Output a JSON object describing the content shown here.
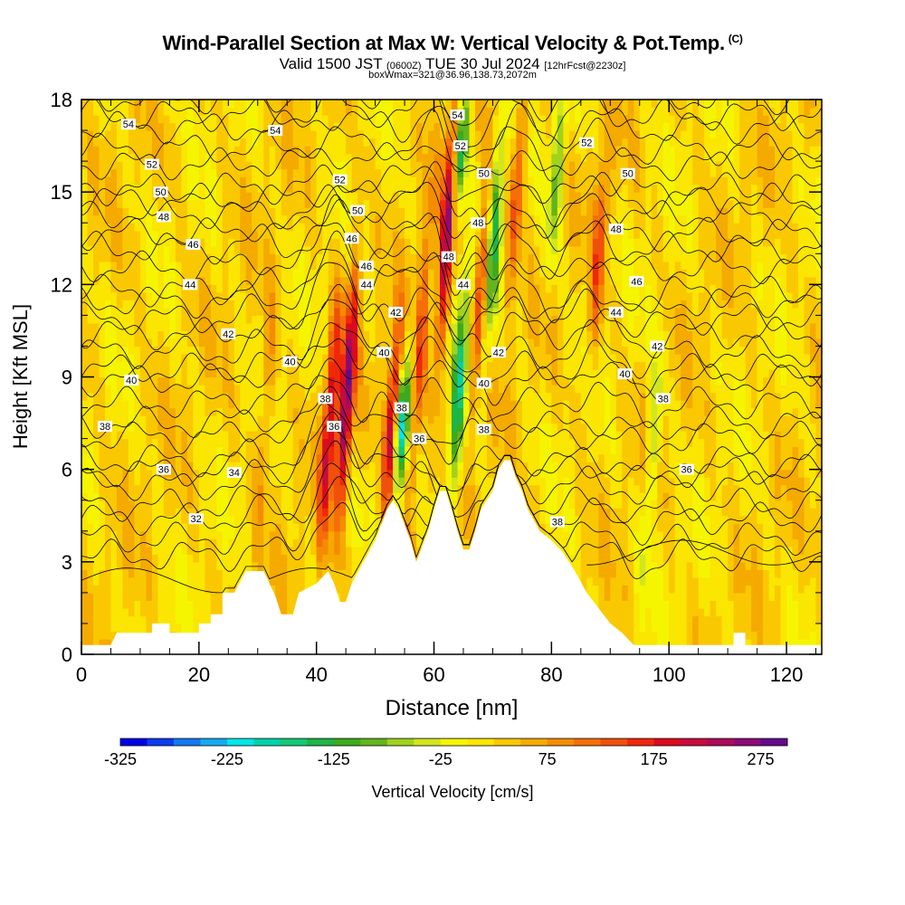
{
  "header": {
    "title": "Wind-Parallel Section at Max W: Vertical Velocity & Pot.Temp.",
    "copyright": "(C)",
    "valid_prefix": "Valid 1500 JST",
    "valid_z": "(0600Z)",
    "valid_date": "TUE 30 Jul 2024",
    "forecast": "[12hrFcst@2230z]",
    "boxwmax": "boxWmax=321@36.96,138.73,2072m"
  },
  "chart_data": {
    "type": "heatmap",
    "title": "Wind-Parallel Section at Max W: Vertical Velocity & Pot.Temp.",
    "xlabel": "Distance [nm]",
    "ylabel": "Height [Kft MSL]",
    "xlim": [
      0,
      126
    ],
    "ylim": [
      0,
      18
    ],
    "x_ticks": [
      0,
      20,
      40,
      60,
      80,
      100,
      120
    ],
    "y_ticks": [
      0,
      3,
      6,
      9,
      12,
      15,
      18
    ],
    "colorbar": {
      "label": "Vertical Velocity [cm/s]",
      "range": [
        -325,
        300
      ],
      "tick_labels": [
        "-325",
        "-225",
        "-125",
        "-25",
        "75",
        "175",
        "275"
      ],
      "tick_values": [
        -325,
        -225,
        -125,
        -25,
        75,
        175,
        275
      ],
      "colors": [
        "#0000e6",
        "#0a3cf0",
        "#1478f0",
        "#14aaf0",
        "#00e6e6",
        "#00d2aa",
        "#14c878",
        "#1eb446",
        "#3caa1e",
        "#64b41e",
        "#a0d21e",
        "#d2e61e",
        "#f5f500",
        "#fae600",
        "#fac800",
        "#f5aa00",
        "#f58c00",
        "#f56e0a",
        "#f0500a",
        "#f0280a",
        "#dc0a1e",
        "#c80a3c",
        "#aa0a5a",
        "#8c0a78",
        "#640a8c"
      ]
    },
    "contour_field": "Potential Temperature",
    "contour_levels": [
      32,
      34,
      36,
      38,
      40,
      42,
      44,
      46,
      48,
      50,
      52,
      54
    ],
    "vertical_velocity_features": [
      {
        "x": 41,
        "y_range": [
          4,
          11
        ],
        "w": 190
      },
      {
        "x": 44,
        "y_range": [
          5,
          12
        ],
        "w": 240
      },
      {
        "x": 52,
        "y_range": [
          5,
          10
        ],
        "w": 220
      },
      {
        "x": 54,
        "y_range": [
          6,
          9
        ],
        "w": -230
      },
      {
        "x": 56,
        "y_range": [
          5,
          14
        ],
        "w": 120
      },
      {
        "x": 61,
        "y_range": [
          10,
          18
        ],
        "w": 230
      },
      {
        "x": 63,
        "y_range": [
          5,
          12
        ],
        "w": -180
      },
      {
        "x": 64,
        "y_range": [
          15,
          18
        ],
        "w": -220
      },
      {
        "x": 67,
        "y_range": [
          9,
          15
        ],
        "w": 140
      },
      {
        "x": 69,
        "y_range": [
          10,
          17
        ],
        "w": -150
      },
      {
        "x": 73,
        "y_range": [
          12,
          18
        ],
        "w": 120
      },
      {
        "x": 80,
        "y_range": [
          13,
          18
        ],
        "w": -110
      },
      {
        "x": 87,
        "y_range": [
          10,
          16
        ],
        "w": 110
      },
      {
        "x": 96,
        "y_range": [
          3,
          10
        ],
        "w": -80
      },
      {
        "x": 30,
        "y_range": [
          4,
          12
        ],
        "w": 60
      }
    ],
    "contour_labels": [
      {
        "text": "54",
        "x": 8,
        "y": 17.2
      },
      {
        "text": "52",
        "x": 12,
        "y": 15.9
      },
      {
        "text": "50",
        "x": 13.5,
        "y": 15.0
      },
      {
        "text": "48",
        "x": 14,
        "y": 14.2
      },
      {
        "text": "46",
        "x": 19,
        "y": 13.3
      },
      {
        "text": "44",
        "x": 18.5,
        "y": 12.0
      },
      {
        "text": "42",
        "x": 25,
        "y": 10.4
      },
      {
        "text": "40",
        "x": 8.5,
        "y": 8.9
      },
      {
        "text": "38",
        "x": 4,
        "y": 7.4
      },
      {
        "text": "36",
        "x": 14,
        "y": 6.0
      },
      {
        "text": "34",
        "x": 26,
        "y": 5.9
      },
      {
        "text": "32",
        "x": 19.5,
        "y": 4.4
      },
      {
        "text": "54",
        "x": 33,
        "y": 17.0
      },
      {
        "text": "52",
        "x": 44,
        "y": 15.4
      },
      {
        "text": "50",
        "x": 47,
        "y": 14.4
      },
      {
        "text": "46",
        "x": 46,
        "y": 13.5
      },
      {
        "text": "46",
        "x": 48.5,
        "y": 12.6
      },
      {
        "text": "44",
        "x": 48.5,
        "y": 12.0
      },
      {
        "text": "40",
        "x": 35.5,
        "y": 9.5
      },
      {
        "text": "38",
        "x": 41.5,
        "y": 8.3
      },
      {
        "text": "36",
        "x": 43,
        "y": 7.4
      },
      {
        "text": "42",
        "x": 53.5,
        "y": 11.1
      },
      {
        "text": "40",
        "x": 51.5,
        "y": 9.8
      },
      {
        "text": "38",
        "x": 54.5,
        "y": 8.0
      },
      {
        "text": "36",
        "x": 57.5,
        "y": 7.0
      },
      {
        "text": "54",
        "x": 64,
        "y": 17.5
      },
      {
        "text": "52",
        "x": 64.5,
        "y": 16.5
      },
      {
        "text": "50",
        "x": 68.5,
        "y": 15.6
      },
      {
        "text": "48",
        "x": 67.5,
        "y": 14.0
      },
      {
        "text": "48",
        "x": 62.5,
        "y": 12.9
      },
      {
        "text": "44",
        "x": 65,
        "y": 12.0
      },
      {
        "text": "42",
        "x": 71,
        "y": 9.8
      },
      {
        "text": "40",
        "x": 68.5,
        "y": 8.8
      },
      {
        "text": "38",
        "x": 68.5,
        "y": 7.3
      },
      {
        "text": "38",
        "x": 81,
        "y": 4.3
      },
      {
        "text": "52",
        "x": 86,
        "y": 16.6
      },
      {
        "text": "50",
        "x": 93,
        "y": 15.6
      },
      {
        "text": "48",
        "x": 91,
        "y": 13.8
      },
      {
        "text": "46",
        "x": 94.5,
        "y": 12.1
      },
      {
        "text": "44",
        "x": 91,
        "y": 11.1
      },
      {
        "text": "42",
        "x": 98,
        "y": 10.0
      },
      {
        "text": "40",
        "x": 92.5,
        "y": 9.1
      },
      {
        "text": "38",
        "x": 99,
        "y": 8.3
      },
      {
        "text": "36",
        "x": 103,
        "y": 6.0
      }
    ],
    "terrain": [
      [
        0,
        0.3
      ],
      [
        5,
        0.3
      ],
      [
        6,
        0.7
      ],
      [
        12,
        0.7
      ],
      [
        12,
        1.0
      ],
      [
        15,
        1.0
      ],
      [
        15,
        0.7
      ],
      [
        20,
        0.7
      ],
      [
        20,
        1.0
      ],
      [
        22,
        1.0
      ],
      [
        22,
        1.3
      ],
      [
        24,
        1.3
      ],
      [
        24,
        2.0
      ],
      [
        26,
        2.0
      ],
      [
        28,
        2.7
      ],
      [
        31,
        2.7
      ],
      [
        33,
        1.9
      ],
      [
        34,
        1.3
      ],
      [
        36,
        1.3
      ],
      [
        37,
        2.0
      ],
      [
        40,
        2.3
      ],
      [
        42,
        2.7
      ],
      [
        43,
        2.3
      ],
      [
        44,
        1.7
      ],
      [
        45,
        1.7
      ],
      [
        46,
        2.3
      ],
      [
        48,
        3.0
      ],
      [
        50,
        3.7
      ],
      [
        52,
        4.7
      ],
      [
        53,
        5.0
      ],
      [
        54,
        4.7
      ],
      [
        56,
        3.7
      ],
      [
        57,
        3.0
      ],
      [
        58,
        3.5
      ],
      [
        59,
        4.0
      ],
      [
        60,
        4.7
      ],
      [
        61,
        5.3
      ],
      [
        62,
        5.3
      ],
      [
        63,
        4.7
      ],
      [
        64,
        4.0
      ],
      [
        65,
        3.4
      ],
      [
        66,
        3.4
      ],
      [
        67,
        4.0
      ],
      [
        68,
        4.7
      ],
      [
        70,
        5.3
      ],
      [
        71,
        6.0
      ],
      [
        72,
        6.3
      ],
      [
        73,
        6.3
      ],
      [
        74,
        5.7
      ],
      [
        75,
        5.3
      ],
      [
        76,
        4.7
      ],
      [
        78,
        4.0
      ],
      [
        80,
        3.7
      ],
      [
        82,
        3.3
      ],
      [
        84,
        2.7
      ],
      [
        86,
        2.0
      ],
      [
        88,
        1.5
      ],
      [
        90,
        1.0
      ],
      [
        92,
        0.7
      ],
      [
        94,
        0.3
      ],
      [
        111,
        0.3
      ],
      [
        111,
        0.7
      ],
      [
        113,
        0.7
      ],
      [
        113,
        0.3
      ],
      [
        126,
        0.3
      ]
    ]
  }
}
